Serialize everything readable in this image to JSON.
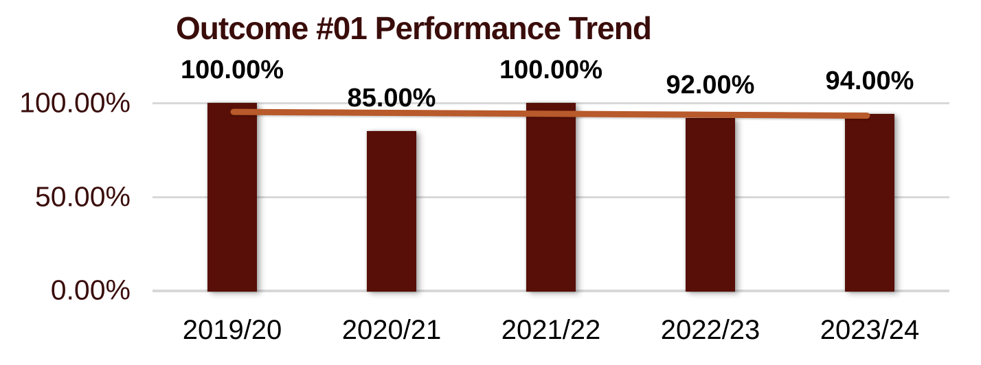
{
  "chart_data": {
    "type": "bar",
    "title": "Outcome #01 Performance Trend",
    "categories": [
      "2019/20",
      "2020/21",
      "2021/22",
      "2022/23",
      "2023/24"
    ],
    "values": [
      100,
      85,
      100,
      92,
      94
    ],
    "data_labels": [
      "100.00%",
      "85.00%",
      "100.00%",
      "92.00%",
      "94.00%"
    ],
    "y_ticks": [
      {
        "value": 100,
        "label": "100.00%"
      },
      {
        "value": 50,
        "label": "50.00%"
      },
      {
        "value": 0,
        "label": "0.00%"
      }
    ],
    "ylim": [
      0,
      100
    ],
    "xlabel": "",
    "ylabel": "",
    "grid": "horizontal",
    "legend": "none",
    "trendline": {
      "type": "linear",
      "start_value": 95.2,
      "end_value": 93.2
    },
    "colors": {
      "bar": "#580F07",
      "trendline": "#B85A2B",
      "title": "#3A0D0B",
      "y_axis_label": "#3A0D0B",
      "x_axis_label": "#000000",
      "data_label": "#000000",
      "gridline": "#D8D8D8",
      "background": "#FFFFFF"
    }
  }
}
